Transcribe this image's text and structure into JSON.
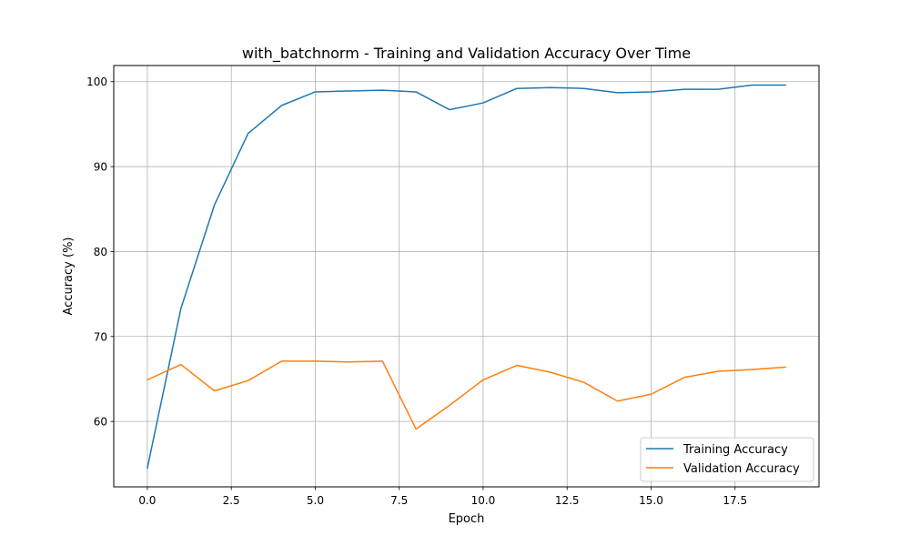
{
  "chart_data": {
    "type": "line",
    "title": "with_batchnorm - Training and Validation Accuracy Over Time",
    "xlabel": "Epoch",
    "ylabel": "Accuracy (%)",
    "xlim": [
      -1.0,
      20.0
    ],
    "ylim": [
      52.3,
      101.9
    ],
    "x": [
      0,
      1,
      2,
      3,
      4,
      5,
      6,
      7,
      8,
      9,
      10,
      11,
      12,
      13,
      14,
      15,
      16,
      17,
      18,
      19
    ],
    "xticks": [
      0.0,
      2.5,
      5.0,
      7.5,
      10.0,
      12.5,
      15.0,
      17.5
    ],
    "xtick_labels": [
      "0.0",
      "2.5",
      "5.0",
      "7.5",
      "10.0",
      "12.5",
      "15.0",
      "17.5"
    ],
    "yticks": [
      60,
      70,
      80,
      90,
      100
    ],
    "ytick_labels": [
      "60",
      "70",
      "80",
      "90",
      "100"
    ],
    "grid": true,
    "legend_position": "lower-right",
    "series": [
      {
        "name": "Training Accuracy",
        "color": "#1f77b4",
        "values": [
          54.5,
          73.3,
          85.5,
          93.9,
          97.2,
          98.8,
          98.9,
          99.0,
          98.8,
          96.7,
          97.5,
          99.2,
          99.3,
          99.2,
          98.7,
          98.8,
          99.1,
          99.1,
          99.6,
          99.6
        ]
      },
      {
        "name": "Validation Accuracy",
        "color": "#ff7f0e",
        "values": [
          64.9,
          66.7,
          63.6,
          64.8,
          67.1,
          67.1,
          67.0,
          67.1,
          59.1,
          61.9,
          64.9,
          66.6,
          65.8,
          64.6,
          62.4,
          63.2,
          65.2,
          65.9,
          66.1,
          66.4
        ]
      }
    ]
  }
}
